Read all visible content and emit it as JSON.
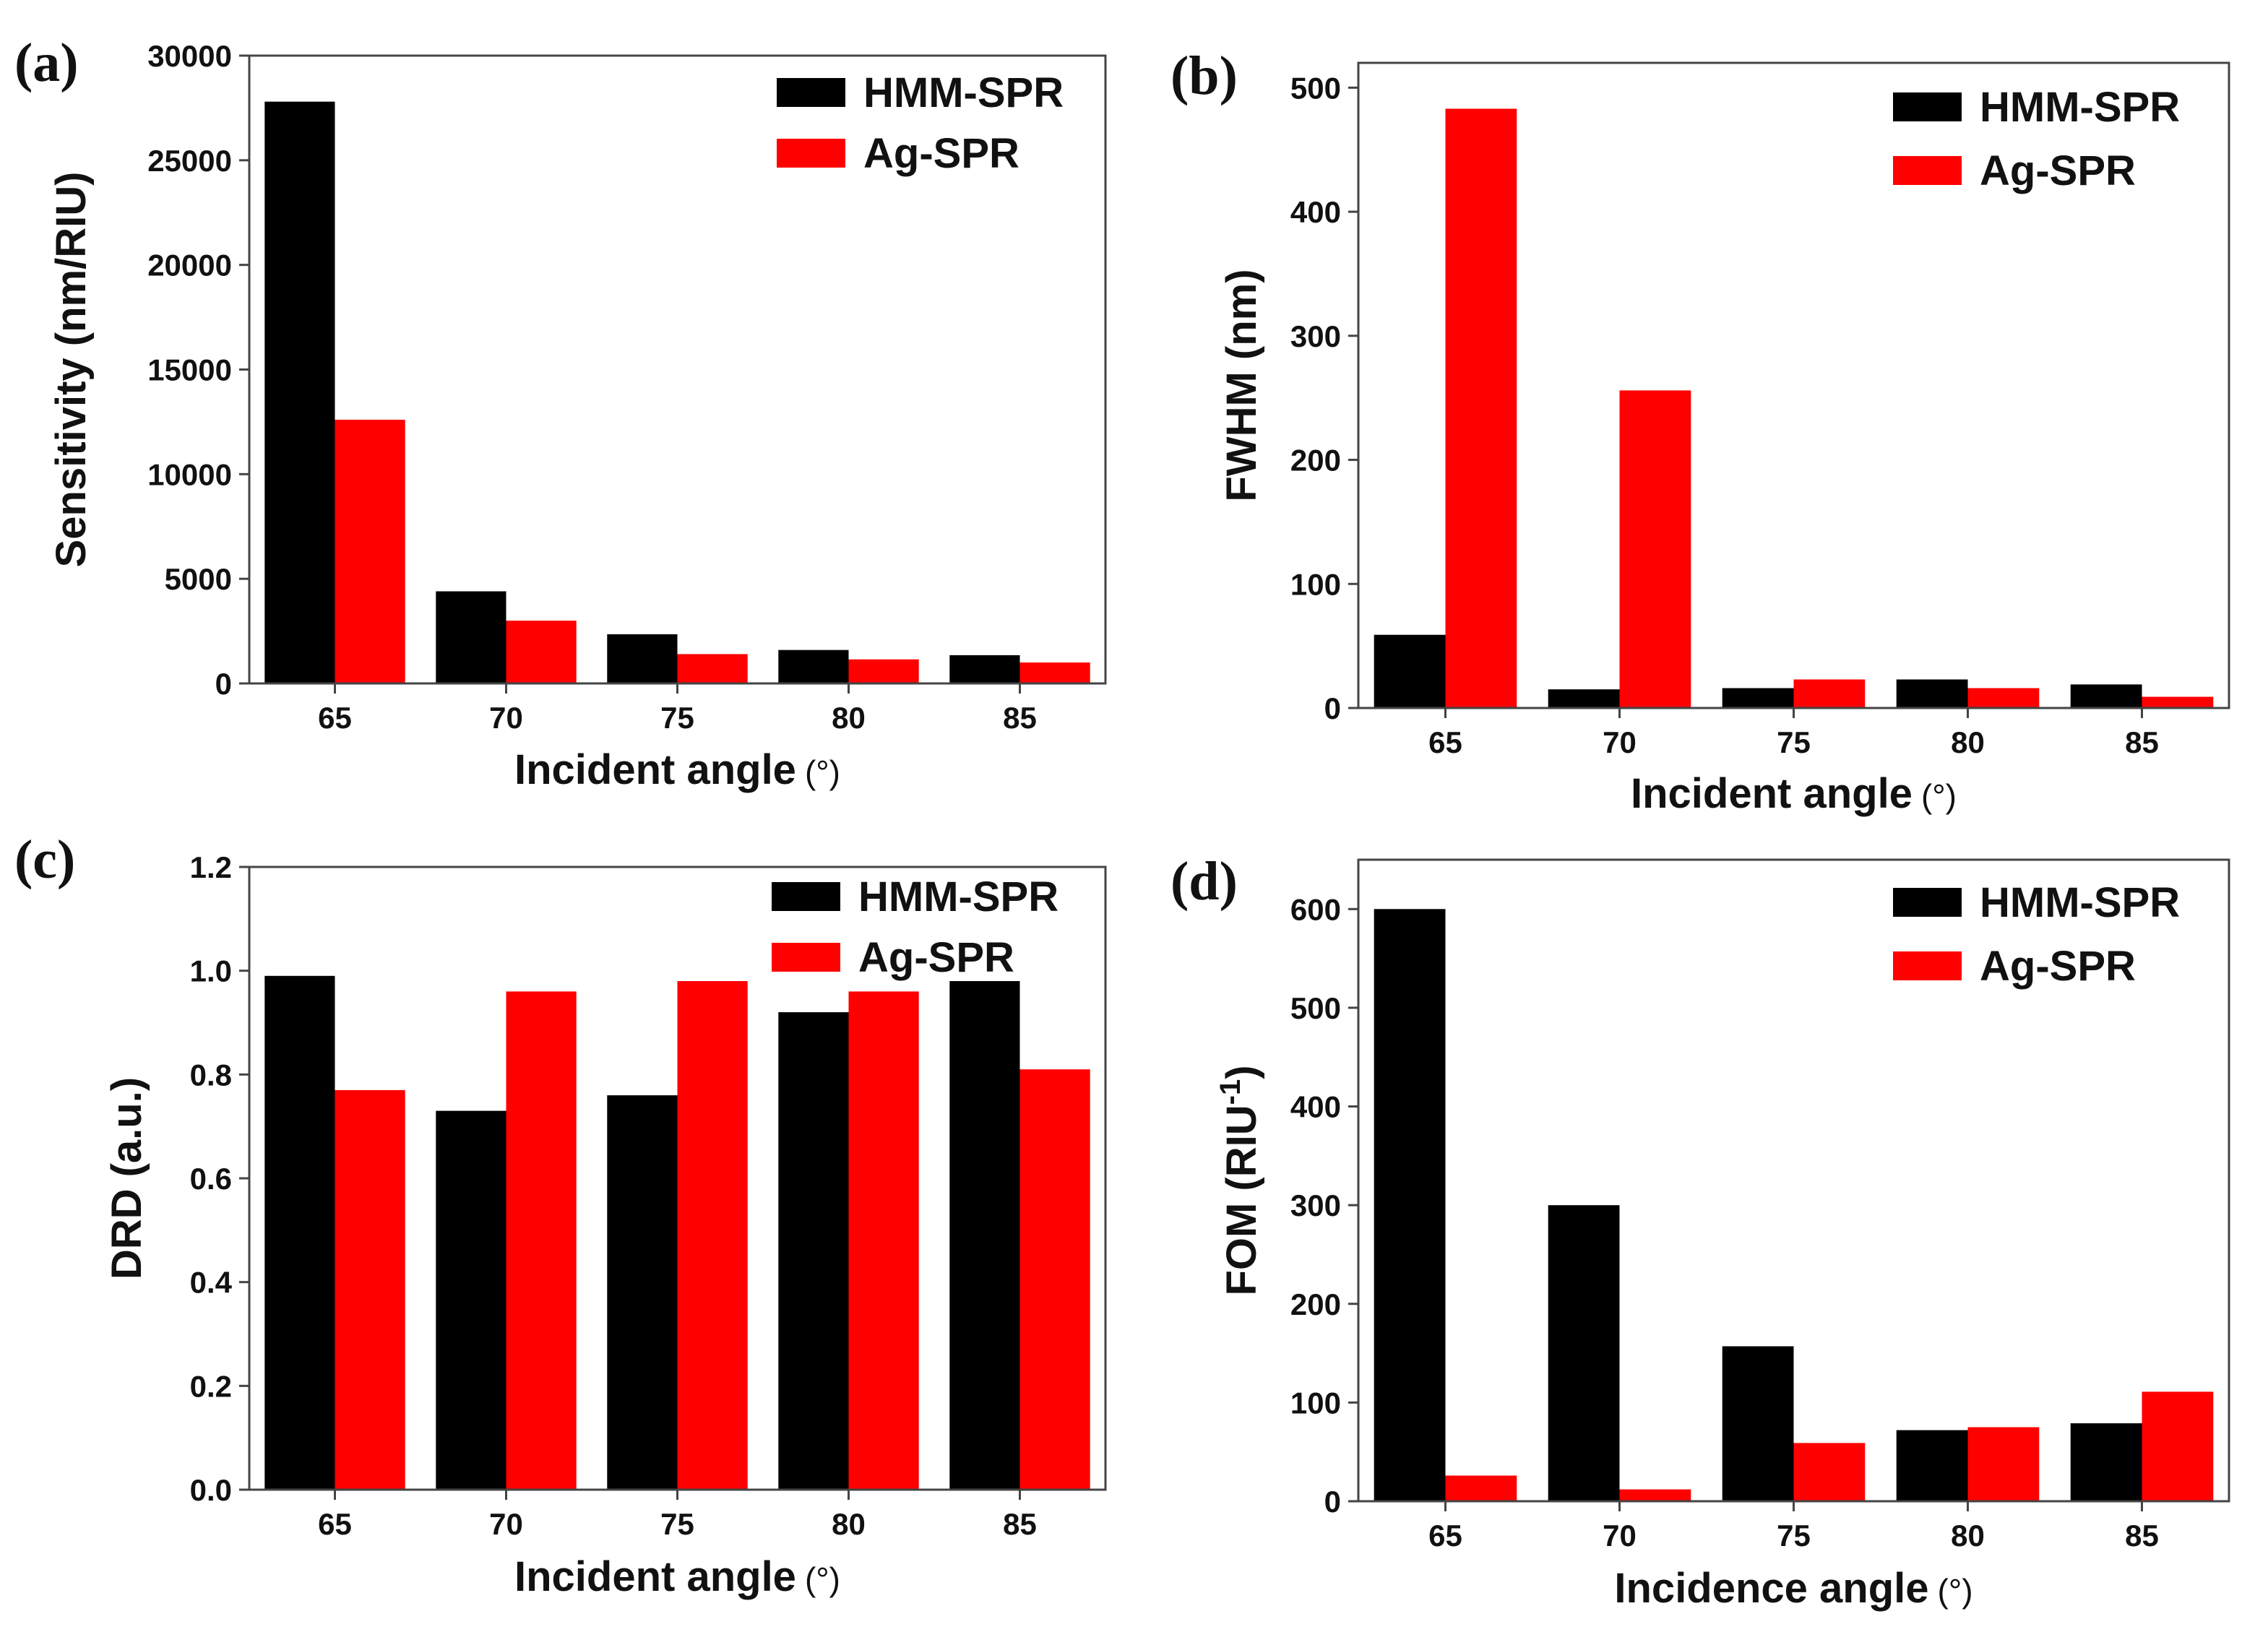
{
  "colors": {
    "series1": "#000000",
    "series2": "#ff0000",
    "axis": "#444444"
  },
  "chart_data": [
    {
      "panel_label": "(a)",
      "type": "bar",
      "categories": [
        "65",
        "70",
        "75",
        "80",
        "85"
      ],
      "series": [
        {
          "name": "HMM-SPR",
          "values": [
            27800,
            4400,
            2350,
            1600,
            1350
          ]
        },
        {
          "name": "Ag-SPR",
          "values": [
            12600,
            3000,
            1400,
            1150,
            1000
          ]
        }
      ],
      "ylim": [
        0,
        30000
      ],
      "yticks": [
        "0",
        "5000",
        "10000",
        "15000",
        "20000",
        "25000",
        "30000"
      ],
      "xlabel": "Incident angle",
      "xlabel_unit": "(°)",
      "ylabel": "Sensitivity (nm/RIU)",
      "legend": [
        "HMM-SPR",
        "Ag-SPR"
      ]
    },
    {
      "panel_label": "(b)",
      "type": "bar",
      "categories": [
        "65",
        "70",
        "75",
        "80",
        "85"
      ],
      "series": [
        {
          "name": "HMM-SPR",
          "values": [
            59,
            15,
            16,
            23,
            19
          ]
        },
        {
          "name": "Ag-SPR",
          "values": [
            483,
            256,
            23,
            16,
            9
          ]
        }
      ],
      "ylim": [
        0,
        520
      ],
      "yticks": [
        "0",
        "100",
        "200",
        "300",
        "400",
        "500"
      ],
      "xlabel": "Incident angle",
      "xlabel_unit": "(°)",
      "ylabel": "FWHM (nm)",
      "legend": [
        "HMM-SPR",
        "Ag-SPR"
      ]
    },
    {
      "panel_label": "(c)",
      "type": "bar",
      "categories": [
        "65",
        "70",
        "75",
        "80",
        "85"
      ],
      "series": [
        {
          "name": "HMM-SPR",
          "values": [
            0.99,
            0.73,
            0.76,
            0.92,
            0.98
          ]
        },
        {
          "name": "Ag-SPR",
          "values": [
            0.77,
            0.96,
            0.98,
            0.96,
            0.81
          ]
        }
      ],
      "ylim": [
        0,
        1.2
      ],
      "yticks": [
        "0.0",
        "0.2",
        "0.4",
        "0.6",
        "0.8",
        "1.0",
        "1.2"
      ],
      "xlabel": "Incident angle",
      "xlabel_unit": "(°)",
      "ylabel": "DRD (a.u.)",
      "legend": [
        "HMM-SPR",
        "Ag-SPR"
      ]
    },
    {
      "panel_label": "(d)",
      "type": "bar",
      "categories": [
        "65",
        "70",
        "75",
        "80",
        "85"
      ],
      "series": [
        {
          "name": "HMM-SPR",
          "values": [
            600,
            300,
            157,
            72,
            79
          ]
        },
        {
          "name": "Ag-SPR",
          "values": [
            26,
            12,
            59,
            75,
            111
          ]
        }
      ],
      "ylim": [
        0,
        650
      ],
      "yticks": [
        "0",
        "100",
        "200",
        "300",
        "400",
        "500",
        "600"
      ],
      "xlabel": "Incidence angle",
      "xlabel_unit": "(°)",
      "ylabel": "FOM (RIU",
      "ylabel_sup": "-1",
      "ylabel_close": ")",
      "legend": [
        "HMM-SPR",
        "Ag-SPR"
      ]
    }
  ]
}
